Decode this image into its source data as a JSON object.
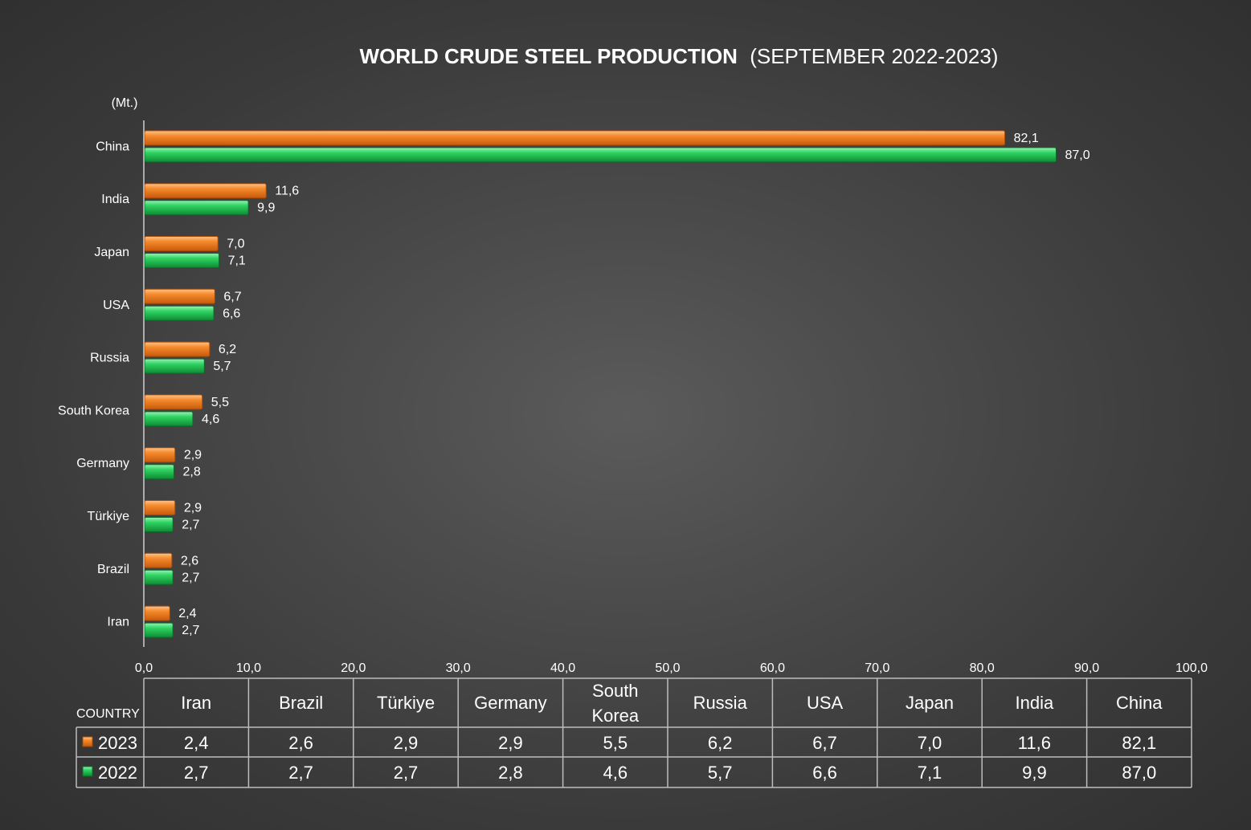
{
  "chart_data": {
    "type": "bar",
    "orientation": "horizontal",
    "title_bold": "WORLD CRUDE STEEL PRODUCTION",
    "title_rest": "(SEPTEMBER 2022-2023)",
    "unit_label": "(Mt.)",
    "categories": [
      "China",
      "India",
      "Japan",
      "USA",
      "Russia",
      "South Korea",
      "Germany",
      "Türkiye",
      "Brazil",
      "Iran"
    ],
    "series": [
      {
        "name": "2023",
        "color": "#f0791e",
        "values": [
          82.1,
          11.6,
          7.0,
          6.7,
          6.2,
          5.5,
          2.9,
          2.9,
          2.6,
          2.4
        ],
        "labels": [
          "82,1",
          "11,6",
          "7,0",
          "6,7",
          "6,2",
          "5,5",
          "2,9",
          "2,9",
          "2,6",
          "2,4"
        ]
      },
      {
        "name": "2022",
        "color": "#1fbf4c",
        "values": [
          87.0,
          9.9,
          7.1,
          6.6,
          5.7,
          4.6,
          2.8,
          2.7,
          2.7,
          2.7
        ],
        "labels": [
          "87,0",
          "9,9",
          "7,1",
          "6,6",
          "5,7",
          "4,6",
          "2,8",
          "2,7",
          "2,7",
          "2,7"
        ]
      }
    ],
    "xlim": [
      0,
      100
    ],
    "xticks": [
      0,
      10,
      20,
      30,
      40,
      50,
      60,
      70,
      80,
      90,
      100
    ],
    "xtick_labels": [
      "0,0",
      "10,0",
      "20,0",
      "30,0",
      "40,0",
      "50,0",
      "60,0",
      "70,0",
      "80,0",
      "90,0",
      "100,0"
    ],
    "grid": false,
    "data_table": {
      "corner_label": "COUNTRY",
      "columns": [
        "Iran",
        "Brazil",
        "Türkiye",
        "Germany",
        "South Korea",
        "Russia",
        "USA",
        "Japan",
        "India",
        "China"
      ],
      "rows": [
        {
          "name": "2023",
          "values": [
            "2,4",
            "2,6",
            "2,9",
            "2,9",
            "5,5",
            "6,2",
            "6,7",
            "7,0",
            "11,6",
            "82,1"
          ]
        },
        {
          "name": "2022",
          "values": [
            "2,7",
            "2,7",
            "2,7",
            "2,8",
            "4,6",
            "5,7",
            "6,6",
            "7,1",
            "9,9",
            "87,0"
          ]
        }
      ]
    }
  }
}
